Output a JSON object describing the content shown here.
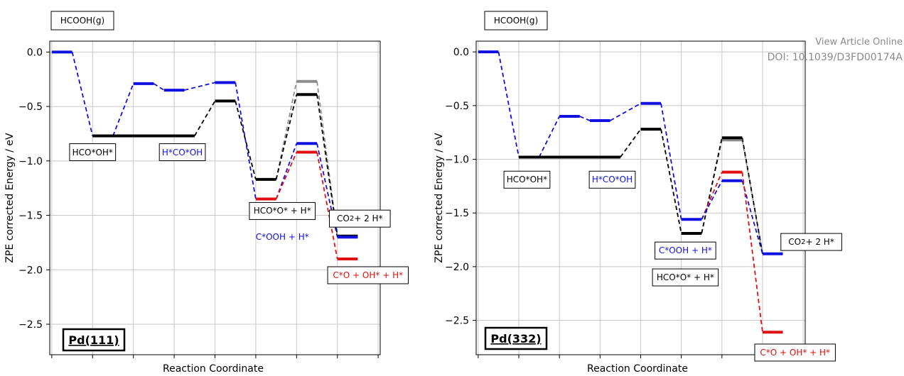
{
  "watermark": {
    "line1": "View Article Online",
    "line2": "DOI: 10.1039/D3FD00174A"
  },
  "colors": {
    "black": "#000000",
    "blue": "#1010e0",
    "red": "#e01010",
    "grey": "#8c8c8c",
    "grid": "#c8c8c8"
  },
  "chart_data": [
    {
      "type": "line",
      "surface_label": "Pd(111)",
      "top_label": "HCOOH(g)",
      "xlabel": "Reaction Coordinate",
      "ylabel": "ZPE corrected Energy / eV",
      "yticks": [
        "0.0",
        "−0.5",
        "−1.0",
        "−1.5",
        "−2.0",
        "−2.5"
      ],
      "ytick_values": [
        0.0,
        -0.5,
        -1.0,
        -1.5,
        -2.0,
        -2.5
      ],
      "ylim": [
        -2.78,
        0.1
      ],
      "xlim": [
        -0.05,
        8.05
      ],
      "xticks": [
        0,
        1,
        2,
        3,
        4,
        5,
        6,
        7,
        8
      ],
      "levels": [
        {
          "series": "blue",
          "x1": 0.0,
          "x2": 0.5,
          "y": 0.0
        },
        {
          "series": "blue",
          "x1": 1.0,
          "x2": 1.5,
          "y": -0.77
        },
        {
          "series": "black",
          "x1": 1.0,
          "x2": 3.5,
          "y": -0.77
        },
        {
          "series": "blue",
          "x1": 2.0,
          "x2": 2.5,
          "y": -0.29
        },
        {
          "series": "blue",
          "x1": 2.75,
          "x2": 3.25,
          "y": -0.35
        },
        {
          "series": "blue",
          "x1": 4.0,
          "x2": 4.5,
          "y": -0.28
        },
        {
          "series": "black",
          "x1": 4.0,
          "x2": 4.5,
          "y": -0.45
        },
        {
          "series": "black",
          "x1": 5.0,
          "x2": 5.5,
          "y": -1.17
        },
        {
          "series": "blue",
          "x1": 5.0,
          "x2": 5.5,
          "y": -1.35
        },
        {
          "series": "red",
          "x1": 5.0,
          "x2": 5.5,
          "y": -1.35
        },
        {
          "series": "grey",
          "x1": 6.0,
          "x2": 6.5,
          "y": -0.27
        },
        {
          "series": "black",
          "x1": 6.0,
          "x2": 6.5,
          "y": -0.39
        },
        {
          "series": "blue",
          "x1": 6.0,
          "x2": 6.5,
          "y": -0.84
        },
        {
          "series": "red",
          "x1": 6.0,
          "x2": 6.5,
          "y": -0.92
        },
        {
          "series": "black",
          "x1": 7.0,
          "x2": 7.5,
          "y": -1.69
        },
        {
          "series": "blue",
          "x1": 7.0,
          "x2": 7.5,
          "y": -1.7
        },
        {
          "series": "red",
          "x1": 7.0,
          "x2": 7.5,
          "y": -1.9
        }
      ],
      "connectors": [
        {
          "series": "blue",
          "x1": 0.5,
          "y1": 0.0,
          "x2": 1.0,
          "y2": -0.77
        },
        {
          "series": "blue",
          "x1": 1.5,
          "y1": -0.77,
          "x2": 2.0,
          "y2": -0.29
        },
        {
          "series": "blue",
          "x1": 2.5,
          "y1": -0.29,
          "x2": 2.75,
          "y2": -0.35
        },
        {
          "series": "blue",
          "x1": 3.25,
          "y1": -0.35,
          "x2": 4.0,
          "y2": -0.28
        },
        {
          "series": "black",
          "x1": 3.5,
          "y1": -0.77,
          "x2": 4.0,
          "y2": -0.45
        },
        {
          "series": "black",
          "x1": 4.5,
          "y1": -0.45,
          "x2": 5.0,
          "y2": -1.17
        },
        {
          "series": "blue",
          "x1": 4.5,
          "y1": -0.28,
          "x2": 5.0,
          "y2": -1.35
        },
        {
          "series": "grey",
          "x1": 5.5,
          "y1": -1.17,
          "x2": 6.0,
          "y2": -0.27
        },
        {
          "series": "black",
          "x1": 5.5,
          "y1": -1.17,
          "x2": 6.0,
          "y2": -0.39
        },
        {
          "series": "blue",
          "x1": 5.5,
          "y1": -1.35,
          "x2": 6.0,
          "y2": -0.84
        },
        {
          "series": "red",
          "x1": 5.5,
          "y1": -1.35,
          "x2": 6.0,
          "y2": -0.92
        },
        {
          "series": "grey",
          "x1": 6.5,
          "y1": -0.27,
          "x2": 7.0,
          "y2": -1.69
        },
        {
          "series": "black",
          "x1": 6.5,
          "y1": -0.39,
          "x2": 7.0,
          "y2": -1.69
        },
        {
          "series": "blue",
          "x1": 6.5,
          "y1": -0.84,
          "x2": 7.0,
          "y2": -1.7
        },
        {
          "series": "red",
          "x1": 6.5,
          "y1": -0.92,
          "x2": 7.0,
          "y2": -1.9
        }
      ],
      "annotations": [
        {
          "text": "HCO*OH*",
          "color": "black",
          "x": 1.0,
          "y": -0.92,
          "boxed": true
        },
        {
          "text": "H*CO*OH",
          "color": "blue",
          "x": 3.2,
          "y": -0.92,
          "boxed": true
        },
        {
          "text": "HCO*O* + H*",
          "color": "black",
          "x": 5.65,
          "y": -1.46,
          "boxed": true
        },
        {
          "text": "C*OOH + H*",
          "color": "blue",
          "x": 5.65,
          "y": -1.7,
          "boxed": false
        },
        {
          "text": "CO<sub>2</sub> + 2 H*",
          "color": "black",
          "x": 7.55,
          "y": -1.53,
          "boxed": true
        },
        {
          "text": "C*O + OH* + H*",
          "color": "red",
          "x": 7.75,
          "y": -2.05,
          "boxed": true
        }
      ]
    },
    {
      "type": "line",
      "surface_label": "Pd(332)",
      "top_label": "HCOOH(g)",
      "xlabel": "Reaction Coordinate",
      "ylabel": "ZPE corrected Energy / eV",
      "yticks": [
        "0.0",
        "−0.5",
        "−1.0",
        "−1.5",
        "−2.0",
        "−2.5"
      ],
      "ytick_values": [
        0.0,
        -0.5,
        -1.0,
        -1.5,
        -2.0,
        -2.5
      ],
      "ylim": [
        -2.82,
        0.1
      ],
      "xlim": [
        -0.05,
        8.05
      ],
      "xticks": [
        0,
        1,
        2,
        3,
        4,
        5,
        6,
        7,
        8
      ],
      "levels": [
        {
          "series": "blue",
          "x1": 0.0,
          "x2": 0.5,
          "y": 0.0
        },
        {
          "series": "blue",
          "x1": 1.0,
          "x2": 1.5,
          "y": -0.98
        },
        {
          "series": "black",
          "x1": 1.0,
          "x2": 3.5,
          "y": -0.98
        },
        {
          "series": "blue",
          "x1": 2.0,
          "x2": 2.5,
          "y": -0.6
        },
        {
          "series": "blue",
          "x1": 2.75,
          "x2": 3.25,
          "y": -0.64
        },
        {
          "series": "blue",
          "x1": 4.0,
          "x2": 4.5,
          "y": -0.48
        },
        {
          "series": "black",
          "x1": 4.0,
          "x2": 4.5,
          "y": -0.72
        },
        {
          "series": "black",
          "x1": 5.0,
          "x2": 5.5,
          "y": -1.69
        },
        {
          "series": "blue",
          "x1": 5.0,
          "x2": 5.5,
          "y": -1.56
        },
        {
          "series": "grey",
          "x1": 6.0,
          "x2": 6.5,
          "y": -0.82
        },
        {
          "series": "black",
          "x1": 6.0,
          "x2": 6.5,
          "y": -0.8
        },
        {
          "series": "red",
          "x1": 6.0,
          "x2": 6.5,
          "y": -1.12
        },
        {
          "series": "blue",
          "x1": 6.0,
          "x2": 6.5,
          "y": -1.2
        },
        {
          "series": "blue",
          "x1": 7.0,
          "x2": 7.5,
          "y": -1.88
        },
        {
          "series": "red",
          "x1": 7.0,
          "x2": 7.5,
          "y": -2.61
        }
      ],
      "connectors": [
        {
          "series": "blue",
          "x1": 0.5,
          "y1": 0.0,
          "x2": 1.0,
          "y2": -0.98
        },
        {
          "series": "blue",
          "x1": 1.5,
          "y1": -0.98,
          "x2": 2.0,
          "y2": -0.6
        },
        {
          "series": "blue",
          "x1": 2.5,
          "y1": -0.6,
          "x2": 2.75,
          "y2": -0.64
        },
        {
          "series": "blue",
          "x1": 3.25,
          "y1": -0.64,
          "x2": 4.0,
          "y2": -0.48
        },
        {
          "series": "black",
          "x1": 3.5,
          "y1": -0.98,
          "x2": 4.0,
          "y2": -0.72
        },
        {
          "series": "black",
          "x1": 4.5,
          "y1": -0.72,
          "x2": 5.0,
          "y2": -1.69
        },
        {
          "series": "blue",
          "x1": 4.5,
          "y1": -0.48,
          "x2": 5.0,
          "y2": -1.56
        },
        {
          "series": "grey",
          "x1": 5.5,
          "y1": -1.69,
          "x2": 6.0,
          "y2": -0.82
        },
        {
          "series": "black",
          "x1": 5.5,
          "y1": -1.69,
          "x2": 6.0,
          "y2": -0.8
        },
        {
          "series": "red",
          "x1": 5.5,
          "y1": -1.56,
          "x2": 6.0,
          "y2": -1.12
        },
        {
          "series": "blue",
          "x1": 5.5,
          "y1": -1.56,
          "x2": 6.0,
          "y2": -1.2
        },
        {
          "series": "grey",
          "x1": 6.5,
          "y1": -0.82,
          "x2": 7.0,
          "y2": -1.88
        },
        {
          "series": "black",
          "x1": 6.5,
          "y1": -0.8,
          "x2": 7.0,
          "y2": -1.88
        },
        {
          "series": "blue",
          "x1": 6.5,
          "y1": -1.2,
          "x2": 7.0,
          "y2": -1.88
        },
        {
          "series": "red",
          "x1": 6.5,
          "y1": -1.12,
          "x2": 7.0,
          "y2": -2.61
        }
      ],
      "annotations": [
        {
          "text": "HCO*OH*",
          "color": "black",
          "x": 1.2,
          "y": -1.19,
          "boxed": true
        },
        {
          "text": "H*CO*OH",
          "color": "blue",
          "x": 3.3,
          "y": -1.19,
          "boxed": true
        },
        {
          "text": "C*OOH + H*",
          "color": "blue",
          "x": 5.1,
          "y": -1.85,
          "boxed": true
        },
        {
          "text": "HCO*O* + H*",
          "color": "black",
          "x": 5.1,
          "y": -2.1,
          "boxed": true
        },
        {
          "text": "CO<sub>2</sub> + 2 H*",
          "color": "black",
          "x": 8.2,
          "y": -1.77,
          "boxed": true
        },
        {
          "text": "C*O + OH* + H*",
          "color": "red",
          "x": 7.8,
          "y": -2.8,
          "boxed": true
        }
      ]
    }
  ]
}
